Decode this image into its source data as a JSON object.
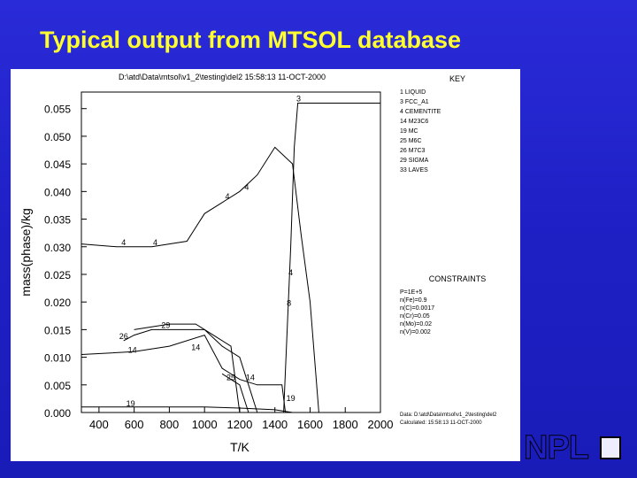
{
  "slide": {
    "title": "Typical output from MTSOL database"
  },
  "plot": {
    "header": "D:\\atd\\Data\\mtsol\\v1_2\\testing\\del2   15:58:13 11-OCT-2000",
    "key_title": "KEY",
    "constraints_title": "CONSTRAINTS",
    "key_entries": [
      "1 LIQUID",
      "3 FCC_A1",
      "4 CEMENTITE",
      "14 M23C6",
      "19 MC",
      "25 M6C",
      "26 M7C3",
      "29 SIGMA",
      "33 LAVES"
    ],
    "constraints_lines": [
      "P=1E+5",
      "n(Fe)=0.9",
      "n(C)=0.0017",
      "n(Cr)=0.05",
      "n(Mo)=0.02",
      "n(V)=0.002"
    ],
    "footer_lines": [
      "Data: D:\\atd\\Data\\mtsol\\v1_2\\testing\\del2",
      "Calculated: 15:58:13 11-OCT-2000"
    ]
  },
  "logo": {
    "text": "NPL"
  },
  "colors": {
    "background": "#1e20c4",
    "title": "#ffff2e",
    "plot_bg": "#ffffff",
    "line": "#000000"
  },
  "chart_data": {
    "type": "line",
    "xlabel": "T/K",
    "ylabel": "mass(phase)/kg",
    "xlim": [
      300,
      2000
    ],
    "ylim": [
      0,
      0.058
    ],
    "xticks": [
      400,
      600,
      800,
      1000,
      1200,
      1400,
      1600,
      1800,
      2000
    ],
    "yticks": [
      0.0,
      0.005,
      0.01,
      0.015,
      0.02,
      0.025,
      0.03,
      0.035,
      0.04,
      0.045,
      0.05,
      0.055
    ],
    "ytick_labels": [
      "0.000",
      "0.005",
      "0.010",
      "0.015",
      "0.020",
      "0.025",
      "0.030",
      "0.035",
      "0.040",
      "0.045",
      "0.050",
      "0.055"
    ],
    "series": [
      {
        "name": "3",
        "points": [
          [
            1450,
            0.0
          ],
          [
            1470,
            0.015
          ],
          [
            1490,
            0.03
          ],
          [
            1510,
            0.048
          ],
          [
            1530,
            0.056
          ],
          [
            2000,
            0.056
          ]
        ]
      },
      {
        "name": "4",
        "points": [
          [
            300,
            0.0305
          ],
          [
            500,
            0.03
          ],
          [
            700,
            0.03
          ],
          [
            900,
            0.031
          ],
          [
            1000,
            0.036
          ],
          [
            1100,
            0.038
          ],
          [
            1200,
            0.04
          ],
          [
            1300,
            0.043
          ],
          [
            1400,
            0.048
          ],
          [
            1500,
            0.045
          ],
          [
            1550,
            0.032
          ],
          [
            1600,
            0.02
          ],
          [
            1650,
            0.0
          ]
        ]
      },
      {
        "name": "14",
        "points": [
          [
            300,
            0.0105
          ],
          [
            600,
            0.011
          ],
          [
            800,
            0.012
          ],
          [
            1000,
            0.014
          ],
          [
            1100,
            0.008
          ],
          [
            1200,
            0.006
          ],
          [
            1300,
            0.005
          ],
          [
            1440,
            0.005
          ],
          [
            1460,
            0.0
          ]
        ]
      },
      {
        "name": "19",
        "points": [
          [
            300,
            0.001
          ],
          [
            600,
            0.001
          ],
          [
            800,
            0.001
          ],
          [
            1000,
            0.001
          ],
          [
            1200,
            0.0008
          ],
          [
            1400,
            0.0005
          ],
          [
            1500,
            0.0
          ]
        ]
      },
      {
        "name": "25",
        "points": [
          [
            1100,
            0.007
          ],
          [
            1150,
            0.006
          ],
          [
            1200,
            0.005
          ],
          [
            1250,
            0.0
          ]
        ]
      },
      {
        "name": "26",
        "points": [
          [
            540,
            0.013
          ],
          [
            600,
            0.014
          ],
          [
            700,
            0.015
          ],
          [
            1000,
            0.015
          ],
          [
            1100,
            0.012
          ],
          [
            1200,
            0.01
          ],
          [
            1250,
            0.005
          ],
          [
            1300,
            0.0
          ]
        ]
      },
      {
        "name": "29",
        "points": [
          [
            600,
            0.015
          ],
          [
            800,
            0.016
          ],
          [
            950,
            0.016
          ],
          [
            1050,
            0.014
          ],
          [
            1150,
            0.012
          ],
          [
            1200,
            0.0
          ]
        ]
      }
    ],
    "curve_labels": [
      {
        "text": "3",
        "x": 1535,
        "y": 0.056
      },
      {
        "text": "4",
        "x": 720,
        "y": 0.03
      },
      {
        "text": "4",
        "x": 540,
        "y": 0.03
      },
      {
        "text": "4",
        "x": 1130,
        "y": 0.0383
      },
      {
        "text": "4",
        "x": 1240,
        "y": 0.04
      },
      {
        "text": "4",
        "x": 1490,
        "y": 0.0245
      },
      {
        "text": "8",
        "x": 1480,
        "y": 0.019
      },
      {
        "text": "14",
        "x": 590,
        "y": 0.0105
      },
      {
        "text": "14",
        "x": 950,
        "y": 0.011
      },
      {
        "text": "14",
        "x": 1260,
        "y": 0.0055
      },
      {
        "text": "19",
        "x": 580,
        "y": 0.0008
      },
      {
        "text": "19",
        "x": 1490,
        "y": 0.0018
      },
      {
        "text": "25",
        "x": 1150,
        "y": 0.0055
      },
      {
        "text": "26",
        "x": 540,
        "y": 0.013
      },
      {
        "text": "29",
        "x": 780,
        "y": 0.015
      }
    ]
  }
}
